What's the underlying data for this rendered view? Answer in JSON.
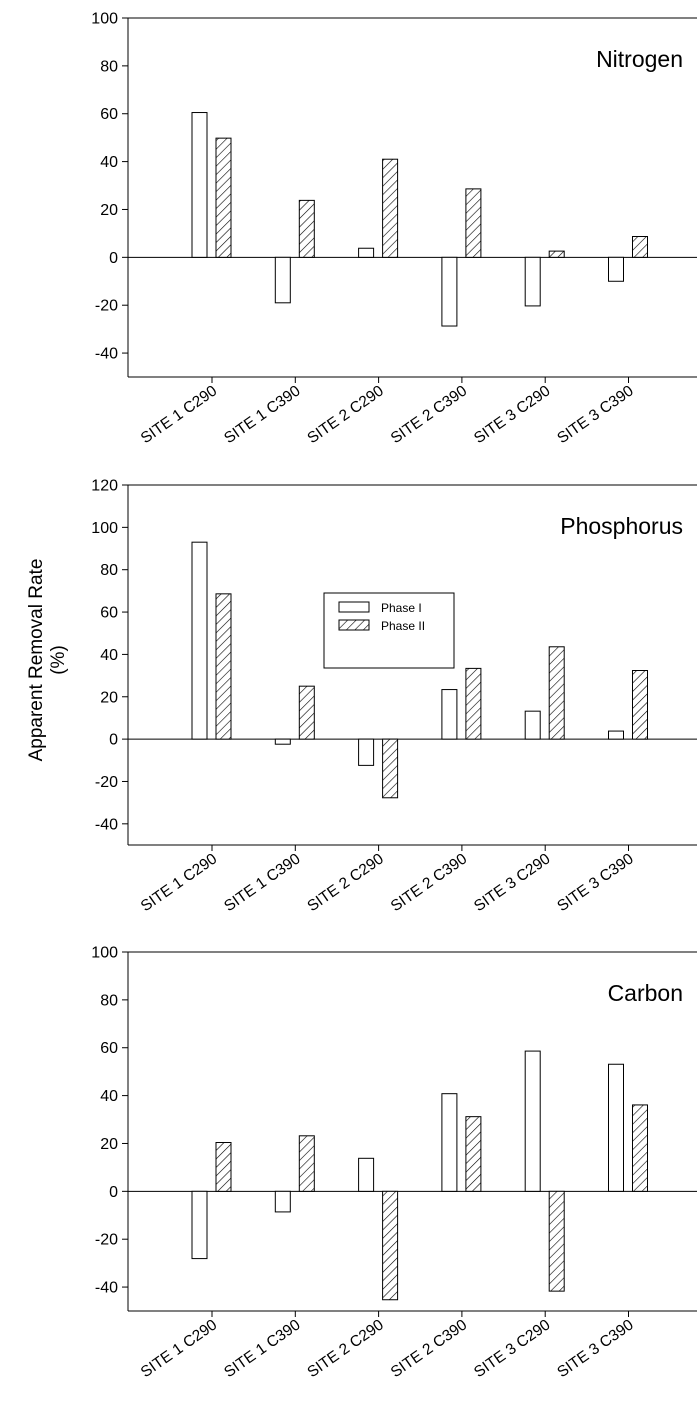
{
  "figure": {
    "ylabel_line1": "Apparent Removal Rate",
    "ylabel_line2": "(%)",
    "legend": {
      "phase1": "Phase I",
      "phase2": "Phase II"
    },
    "colors": {
      "phase1_fill": "#ffffff",
      "phase2_hatch": "#000000",
      "axis": "#000000"
    }
  },
  "chart_data": [
    {
      "type": "bar",
      "title": "Nitrogen",
      "categories": [
        "SITE 1 C290",
        "SITE 1 C390",
        "SITE 2 C290",
        "SITE 2 C390",
        "SITE 3 C290",
        "SITE 3 C390"
      ],
      "series": [
        {
          "name": "Phase I",
          "pattern": "open",
          "values": [
            60.5,
            -19,
            3.8,
            -28.7,
            -20.3,
            -10
          ]
        },
        {
          "name": "Phase II",
          "pattern": "hatched",
          "values": [
            49.8,
            23.8,
            41,
            28.6,
            2.6,
            8.7
          ]
        }
      ],
      "ylim": [
        -50,
        100
      ],
      "yticks": [
        -40,
        -20,
        0,
        20,
        40,
        60,
        80,
        100
      ],
      "legend": false
    },
    {
      "type": "bar",
      "title": "Phosphorus",
      "categories": [
        "SITE 1 C290",
        "SITE 1 C390",
        "SITE 2 C290",
        "SITE 2 C390",
        "SITE 3 C290",
        "SITE 3 C390"
      ],
      "series": [
        {
          "name": "Phase I",
          "pattern": "open",
          "values": [
            93,
            -2.4,
            -12.4,
            23.4,
            13.2,
            3.8
          ]
        },
        {
          "name": "Phase II",
          "pattern": "hatched",
          "values": [
            68.6,
            25,
            -27.7,
            33.4,
            43.6,
            32.4
          ]
        }
      ],
      "ylim": [
        -50,
        120
      ],
      "yticks": [
        -40,
        -20,
        0,
        20,
        40,
        60,
        80,
        100,
        120
      ],
      "legend": true,
      "legend_position": "center"
    },
    {
      "type": "bar",
      "title": "Carbon",
      "categories": [
        "SITE 1 C290",
        "SITE 1 C390",
        "SITE 2 C290",
        "SITE 2 C390",
        "SITE 3 C290",
        "SITE 3 C390"
      ],
      "series": [
        {
          "name": "Phase I",
          "pattern": "open",
          "values": [
            -28.1,
            -8.6,
            13.8,
            40.8,
            58.6,
            53.1
          ]
        },
        {
          "name": "Phase II",
          "pattern": "hatched",
          "values": [
            20.4,
            23.2,
            -45.3,
            31.2,
            -41.7,
            36.1
          ]
        }
      ],
      "ylim": [
        -50,
        100
      ],
      "yticks": [
        -40,
        -20,
        0,
        20,
        40,
        60,
        80,
        100
      ],
      "legend": false
    }
  ]
}
